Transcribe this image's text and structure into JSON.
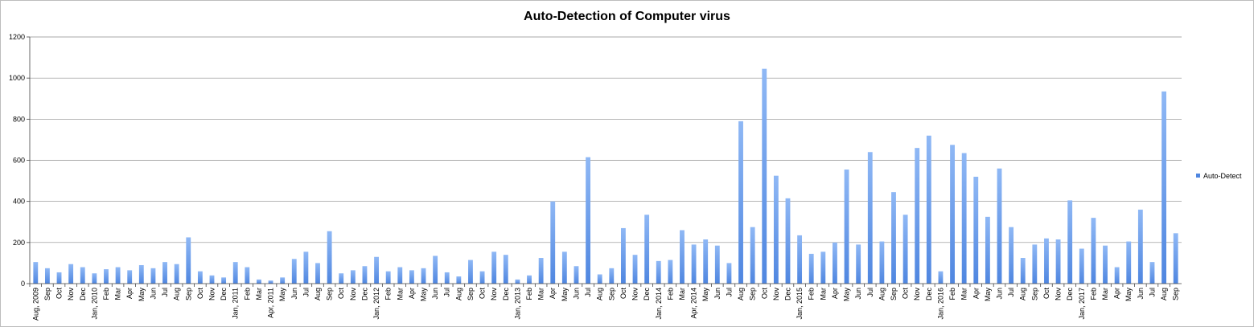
{
  "chart_data": {
    "type": "bar",
    "title": "Auto-Detection of Computer virus",
    "xlabel": "",
    "ylabel": "",
    "ylim": [
      0,
      1200
    ],
    "yticks": [
      0,
      200,
      400,
      600,
      800,
      1000,
      1200
    ],
    "grid": true,
    "legend_position": "right",
    "bar_color": "#8fb8f5",
    "bar_color_dark": "#4f86e0",
    "categories": [
      "Aug, 2009",
      "Sep",
      "Oct",
      "Nov",
      "Dec",
      "Jan, 2010",
      "Feb",
      "Mar",
      "Apr",
      "May",
      "Jun",
      "Jul",
      "Aug",
      "Sep",
      "Oct",
      "Nov",
      "Dec",
      "Jan, 2011",
      "Feb",
      "Mar",
      "Apr, 2011",
      "May",
      "Jun",
      "Jul",
      "Aug",
      "Sep",
      "Oct",
      "Nov",
      "Dec",
      "Jan, 2012",
      "Feb",
      "Mar",
      "Apr",
      "May",
      "Jun",
      "Jul",
      "Aug",
      "Sep",
      "Oct",
      "Nov",
      "Dec",
      "Jan, 2013",
      "Feb",
      "Mar",
      "Apr",
      "May",
      "Jun",
      "Jul",
      "Aug",
      "Sep",
      "Oct",
      "Nov",
      "Dec",
      "Jan, 2014",
      "Feb",
      "Mar",
      "Apr, 2014",
      "May",
      "Jun",
      "Jul",
      "Aug",
      "Sep",
      "Oct",
      "Nov",
      "Dec",
      "Jan, 2015",
      "Feb",
      "Mar",
      "Apr",
      "May",
      "Jun",
      "Jul",
      "Aug",
      "Sep",
      "Oct",
      "Nov",
      "Dec",
      "Jan, 2016",
      "Feb",
      "Mar",
      "Apr",
      "May",
      "Jun",
      "Jul",
      "Aug",
      "Sep",
      "Oct",
      "Nov",
      "Dec",
      "Jan, 2017",
      "Feb",
      "Mar",
      "Apr",
      "May",
      "Jun",
      "Jul",
      "Aug",
      "Sep"
    ],
    "series": [
      {
        "name": "Auto-Detect",
        "values": [
          105,
          75,
          55,
          95,
          80,
          50,
          70,
          80,
          65,
          90,
          75,
          105,
          95,
          225,
          60,
          40,
          30,
          105,
          80,
          20,
          15,
          30,
          120,
          155,
          100,
          255,
          50,
          65,
          85,
          130,
          60,
          80,
          65,
          75,
          135,
          55,
          35,
          115,
          60,
          155,
          140,
          20,
          40,
          125,
          400,
          155,
          85,
          615,
          45,
          75,
          270,
          140,
          335,
          110,
          115,
          260,
          190,
          215,
          185,
          100,
          790,
          275,
          1045,
          525,
          415,
          235,
          145,
          155,
          200,
          555,
          190,
          640,
          205,
          445,
          335,
          660,
          720,
          60,
          675,
          635,
          520,
          325,
          560,
          275,
          125,
          190,
          220,
          215,
          405,
          170,
          320,
          185,
          80,
          205,
          360,
          105,
          935,
          245
        ]
      }
    ]
  }
}
